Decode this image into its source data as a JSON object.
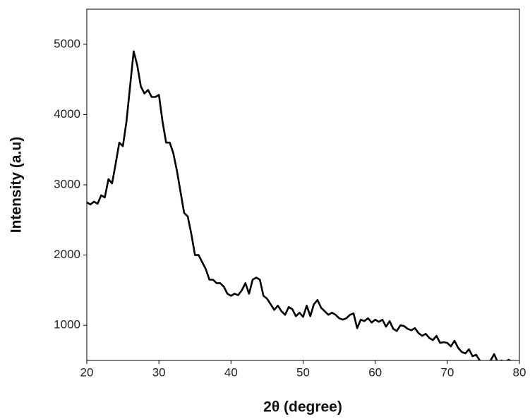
{
  "chart_data": {
    "type": "line",
    "x_label": "2θ (degree)",
    "y_label": "Intensity (a.u)",
    "x": [
      20,
      20.5,
      21,
      21.5,
      22,
      22.5,
      23,
      23.5,
      24,
      24.5,
      25,
      25.5,
      26,
      26.5,
      27,
      27.5,
      28,
      28.5,
      29,
      29.5,
      30,
      30.5,
      31,
      31.5,
      32,
      32.5,
      33,
      33.5,
      34,
      34.5,
      35,
      35.5,
      36,
      36.5,
      37,
      37.5,
      38,
      38.5,
      39,
      39.5,
      40,
      40.5,
      41,
      41.5,
      42,
      42.5,
      43,
      43.5,
      44,
      44.5,
      45,
      45.5,
      46,
      46.5,
      47,
      47.5,
      48,
      48.5,
      49,
      49.5,
      50,
      50.5,
      51,
      51.5,
      52,
      52.5,
      53,
      53.5,
      54,
      54.5,
      55,
      55.5,
      56,
      56.5,
      57,
      57.5,
      58,
      58.5,
      59,
      59.5,
      60,
      60.5,
      61,
      61.5,
      62,
      62.5,
      63,
      63.5,
      64,
      64.5,
      65,
      65.5,
      66,
      66.5,
      67,
      67.5,
      68,
      68.5,
      69,
      69.5,
      70,
      70.5,
      71,
      71.5,
      72,
      72.5,
      73,
      73.5,
      74,
      74.5,
      75,
      75.5,
      76,
      76.5,
      77,
      77.5,
      78,
      78.5,
      79
    ],
    "values": [
      2750,
      2720,
      2760,
      2730,
      2850,
      2820,
      3080,
      3020,
      3300,
      3600,
      3550,
      3900,
      4400,
      4900,
      4700,
      4400,
      4300,
      4350,
      4250,
      4250,
      4280,
      3900,
      3600,
      3600,
      3450,
      3200,
      2900,
      2600,
      2550,
      2300,
      2000,
      2000,
      1900,
      1800,
      1650,
      1650,
      1600,
      1600,
      1550,
      1450,
      1420,
      1450,
      1430,
      1500,
      1600,
      1450,
      1650,
      1680,
      1650,
      1420,
      1380,
      1300,
      1220,
      1280,
      1200,
      1150,
      1260,
      1230,
      1130,
      1180,
      1120,
      1280,
      1130,
      1300,
      1360,
      1250,
      1200,
      1150,
      1180,
      1150,
      1100,
      1080,
      1100,
      1150,
      1170,
      960,
      1080,
      1060,
      1100,
      1040,
      1080,
      1050,
      1080,
      980,
      1060,
      950,
      920,
      1000,
      990,
      950,
      930,
      960,
      890,
      850,
      880,
      820,
      790,
      850,
      750,
      760,
      750,
      700,
      780,
      680,
      620,
      600,
      660,
      560,
      580,
      500,
      470,
      480,
      500,
      590,
      470,
      500,
      480,
      510,
      480
    ],
    "color": "#000000",
    "xlim": [
      20,
      80
    ],
    "xticks": [
      20,
      30,
      40,
      50,
      60,
      70,
      80
    ],
    "ylim": [
      500,
      5500
    ],
    "yticks": [
      1000,
      2000,
      3000,
      4000,
      5000
    ]
  }
}
